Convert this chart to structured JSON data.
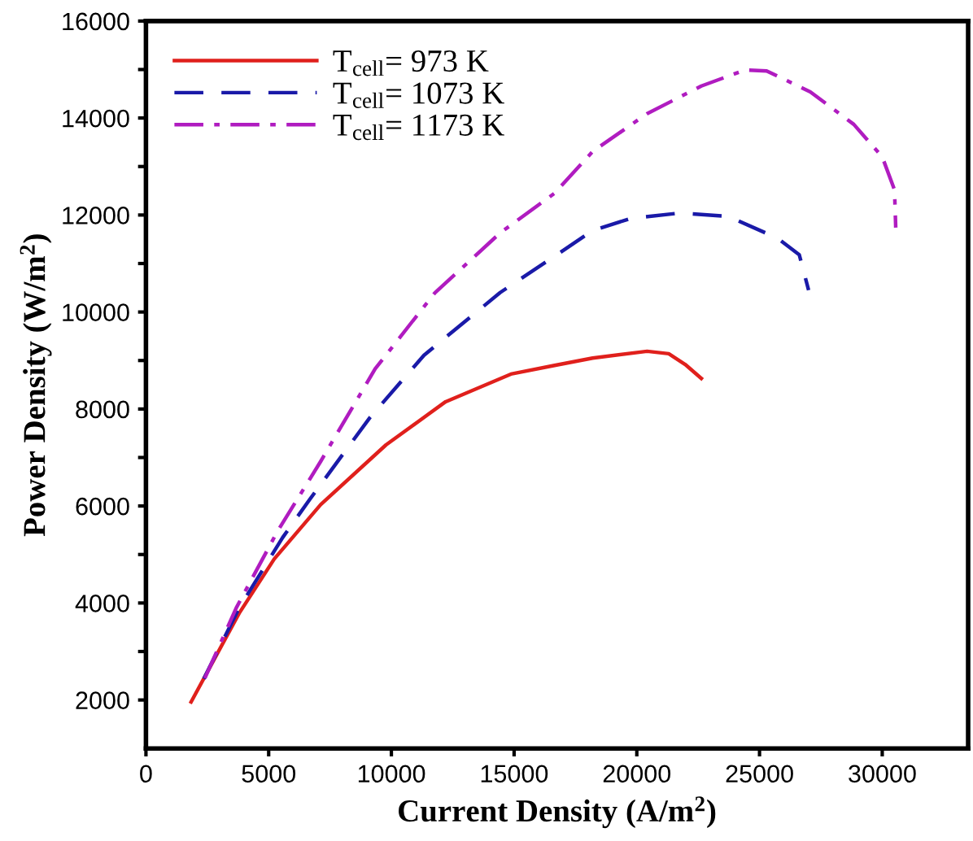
{
  "chart_data": {
    "type": "line",
    "xlabel": "Current Density (A/m$^{2}$)",
    "ylabel": "Power Density (W/m$^{2}$)",
    "xlim": [
      0,
      33500
    ],
    "ylim": [
      1000,
      16000
    ],
    "xticks": [
      0,
      5000,
      10000,
      15000,
      20000,
      25000,
      30000
    ],
    "yticks": [
      2000,
      {
        "value": 3000,
        "label": null
      },
      4000,
      {
        "value": 5000,
        "label": null
      },
      6000,
      {
        "value": 7000,
        "label": null
      },
      8000,
      {
        "value": 9000,
        "label": null
      },
      10000,
      {
        "value": 11000,
        "label": null
      },
      12000,
      {
        "value": 13000,
        "label": null
      },
      14000,
      {
        "value": 15000,
        "label": null
      },
      16000
    ],
    "grid": false,
    "legend": "top left",
    "marker": "none",
    "series": [
      {
        "name": "T$_{cell}$= 973 K",
        "color": "#e0201c",
        "line_style": "solid",
        "x": [
          1840,
          3800,
          5230,
          7120,
          9780,
          12210,
          14870,
          16650,
          18200,
          20420,
          21300,
          21970,
          22630
        ],
        "values": [
          1960,
          3790,
          4910,
          6030,
          7260,
          8150,
          8720,
          8900,
          9050,
          9190,
          9140,
          8920,
          8630
        ]
      },
      {
        "name": "T$_{cell}$= 1073 K",
        "color": "#1a1aa8",
        "line_style": "dashed",
        "x": [
          2360,
          3800,
          5570,
          6680,
          9120,
          11330,
          14430,
          16650,
          18200,
          19750,
          21750,
          23740,
          25740,
          26620,
          27000
        ],
        "values": [
          2440,
          3900,
          5350,
          6140,
          7820,
          9110,
          10400,
          11150,
          11680,
          11930,
          12040,
          11970,
          11520,
          11180,
          10450
        ]
      },
      {
        "name": "T$_{cell}$= 1173 K",
        "color": "#b01cc0",
        "line_style": "dashdot",
        "x": [
          2400,
          3680,
          5350,
          7120,
          9340,
          11780,
          14430,
          16650,
          18200,
          20420,
          22630,
          24410,
          25290,
          27070,
          28840,
          30000,
          30500,
          30550
        ],
        "values": [
          2450,
          3900,
          5470,
          6920,
          8830,
          10400,
          11630,
          12450,
          13310,
          14090,
          14660,
          14990,
          14970,
          14540,
          13870,
          13200,
          12520,
          11740
        ]
      }
    ]
  }
}
